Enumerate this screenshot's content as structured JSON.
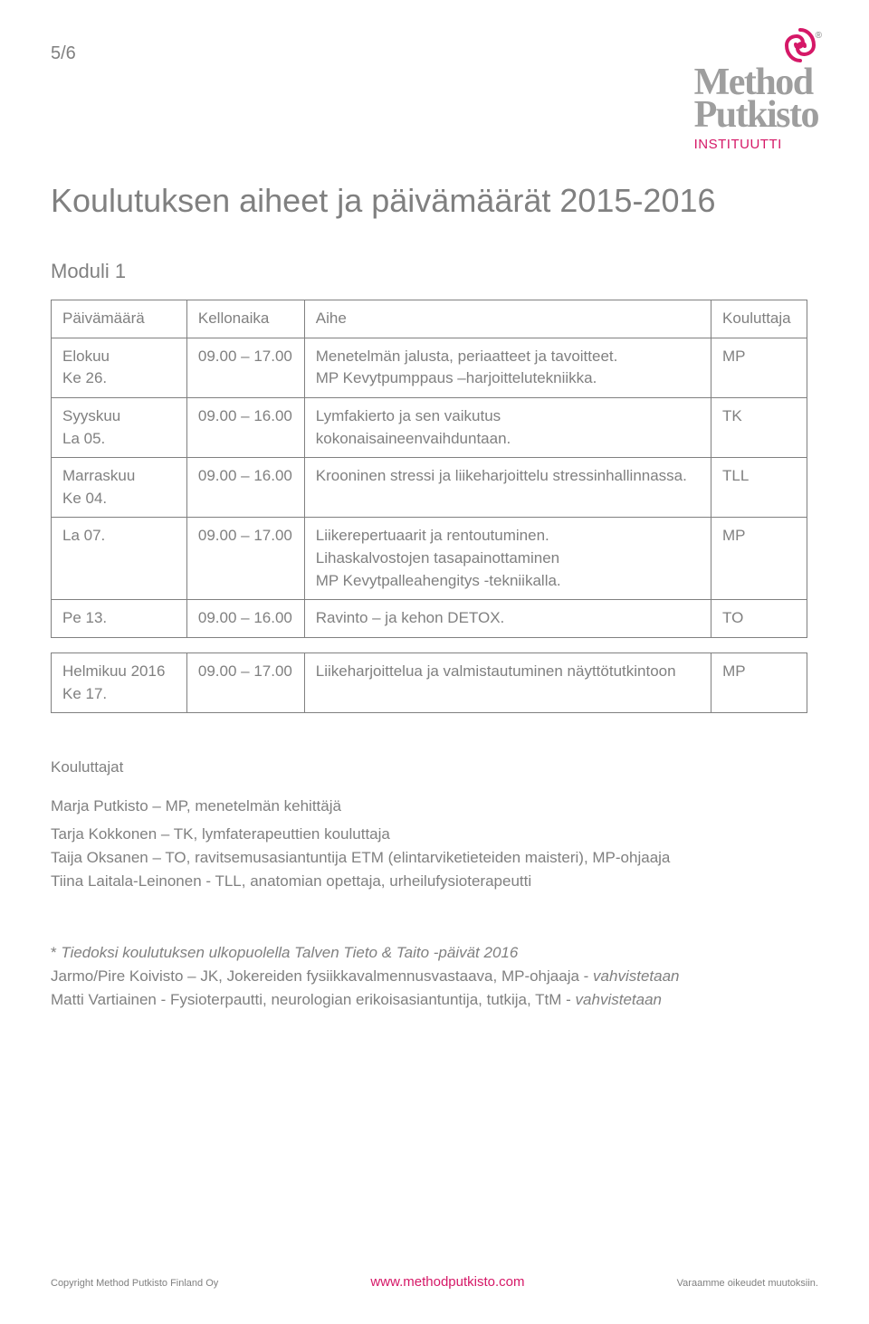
{
  "page_number": "5/6",
  "brand": {
    "line1": "Method",
    "line2": "Putkisto",
    "sub": "INSTITUUTTI",
    "reg": "®",
    "icon_color": "#d51867",
    "text_color": "#9e9e9e"
  },
  "title": "Koulutuksen aiheet ja päivämäärät 2015-2016",
  "module_label": "Moduli 1",
  "table1": {
    "headers": [
      "Päivämäärä",
      "Kellonaika",
      "Aihe",
      "Kouluttaja"
    ],
    "rows": [
      {
        "date": "Elokuu\nKe 26.",
        "time": "09.00 – 17.00",
        "topic": "Menetelmän jalusta, periaatteet ja tavoitteet.\nMP Kevytpumppaus –harjoittelutekniikka.",
        "trainer": "MP"
      },
      {
        "date": "Syyskuu\nLa 05.",
        "time": "09.00 – 16.00",
        "topic": "Lymfakierto ja sen vaikutus kokonaisaineenvaihduntaan.",
        "trainer": "TK"
      },
      {
        "date": "Marraskuu\nKe 04.",
        "time": "09.00 – 16.00",
        "topic": "Krooninen stressi ja liikeharjoittelu stressinhallinnassa.",
        "trainer": "TLL"
      },
      {
        "date": "La 07.",
        "time": "09.00 – 17.00",
        "topic": "Liikerepertuaarit ja rentoutuminen.\nLihaskalvostojen tasapainottaminen\nMP Kevytpalleahengitys -tekniikalla.",
        "trainer": "MP"
      },
      {
        "date": "Pe 13.",
        "time": "09.00 – 16.00",
        "topic": "Ravinto – ja kehon DETOX.",
        "trainer": "TO"
      }
    ]
  },
  "table2": {
    "rows": [
      {
        "date": "Helmikuu 2016\nKe 17.",
        "time": "09.00 – 17.00",
        "topic": "Liikeharjoittelua ja valmistautuminen näyttötutkintoon",
        "trainer": "MP"
      }
    ]
  },
  "trainers_heading": "Kouluttajat",
  "trainers": [
    "Marja Putkisto – MP, menetelmän kehittäjä",
    "Tarja Kokkonen – TK, lymfaterapeuttien kouluttaja",
    "Taija Oksanen – TO, ravitsemusasiantuntija ETM (elintarviketieteiden maisteri), MP-ohjaaja",
    "Tiina Laitala-Leinonen -  TLL,  anatomian opettaja, urheilufysioterapeutti"
  ],
  "footnote": {
    "line1_prefix": "*   ",
    "line1_italic": "Tiedoksi koulutuksen ulkopuolella Talven Tieto & Taito -päivät 2016",
    "line2_a": "Jarmo/Pire Koivisto – JK, Jokereiden fysiikkavalmennusvastaava, MP-ohjaaja  - ",
    "line2_b": "vahvistetaan",
    "line3_a": "Matti Vartiainen - Fysioterpautti, neurologian erikoisasiantuntija, tutkija, TtM  - ",
    "line3_b": "vahvistetaan"
  },
  "footer": {
    "left": "Copyright Method Putkisto Finland Oy",
    "center": "www.methodputkisto.com",
    "right": "Varaamme oikeudet muutoksiin."
  },
  "colors": {
    "text": "#808080",
    "border": "#808080",
    "accent": "#d51867",
    "background": "#ffffff"
  }
}
